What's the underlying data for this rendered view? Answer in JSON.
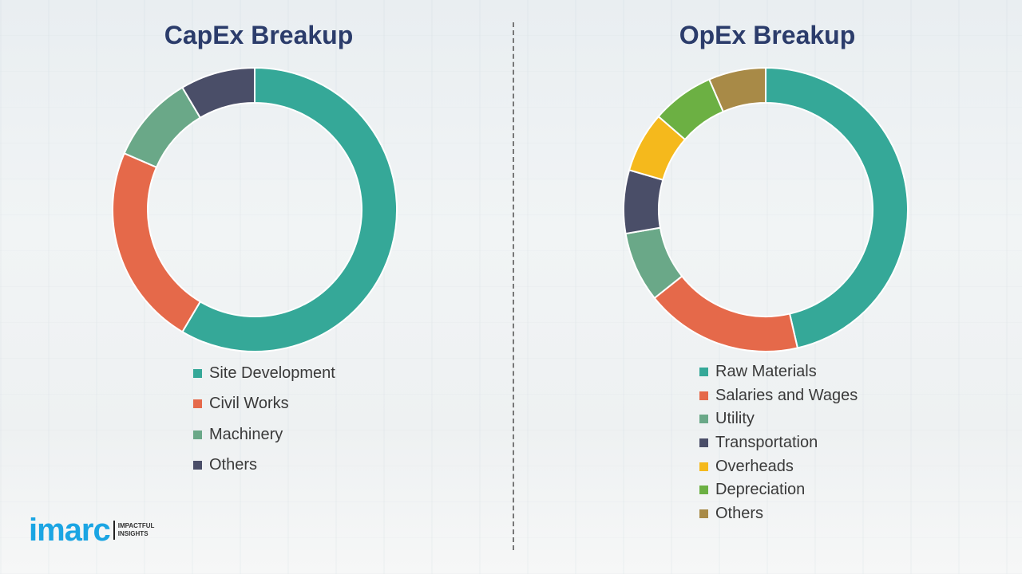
{
  "chart_data": [
    {
      "type": "pie",
      "variant": "donut",
      "title": "CapEx Breakup",
      "categories": [
        "Site Development",
        "Civil Works",
        "Machinery",
        "Others"
      ],
      "values": [
        58.5,
        23,
        10,
        8.5
      ],
      "colors": [
        "#35a898",
        "#e5694a",
        "#6aa888",
        "#4a4e68"
      ],
      "legend": "bottom"
    },
    {
      "type": "pie",
      "variant": "donut",
      "title": "OpEx Breakup",
      "categories": [
        "Raw Materials",
        "Salaries and Wages",
        "Utility",
        "Transportation",
        "Overheads",
        "Depreciation",
        "Others"
      ],
      "values": [
        46.4,
        17.9,
        8.0,
        7.2,
        6.9,
        7.1,
        6.5
      ],
      "colors": [
        "#35a898",
        "#e5694a",
        "#6aa888",
        "#4a4e68",
        "#f5b91c",
        "#6cb043",
        "#a88a47"
      ],
      "legend": "bottom"
    }
  ],
  "logo": {
    "word": "imarc",
    "tagline": [
      "IMPACTFUL",
      "INSIGHTS"
    ]
  }
}
